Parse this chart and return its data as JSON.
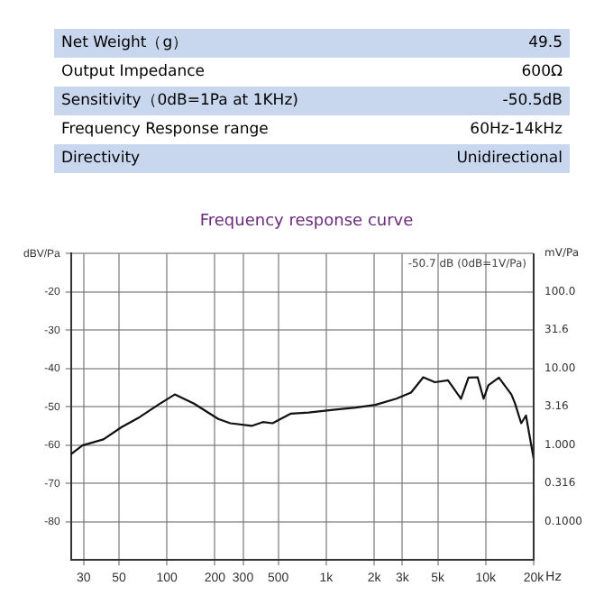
{
  "chart_data": {
    "type": "line",
    "title": "Frequency response curve",
    "annotations": [
      "-50.7 dB (0dB=1V/Pa)",
      "Net Weight（g）",
      "49.5",
      "Output Impedance",
      "600Ω",
      "Sensitivity（0dB=1Pa at 1KHz)",
      "-50.5dB",
      "Frequency Response range",
      "60Hz-14kHz",
      "Directivity",
      "Unidirectional",
      "mV/Pa",
      "100.0",
      "31.6",
      "10.00",
      "3.16",
      "1.000",
      "0.316",
      "0.1000"
    ],
    "log": "x",
    "grid": true,
    "marker": "none",
    "line_style": "solid",
    "xlim": [
      25,
      20000
    ],
    "xticks": [
      30,
      50,
      100,
      200,
      300,
      500,
      {
        "value": 1000,
        "label": "1k"
      },
      {
        "value": 2000,
        "label": "2k"
      },
      {
        "value": 3000,
        "label": "3k"
      },
      {
        "value": 5000,
        "label": "5k"
      },
      {
        "value": 10000,
        "label": "10k"
      },
      {
        "value": 20000,
        "label": "20k"
      }
    ],
    "xlabel": "Hz",
    "ylim": [
      -90,
      -10
    ],
    "yticks": [
      -80,
      -70,
      -60,
      -50,
      -40,
      -30,
      -20,
      {
        "value": -10,
        "label": "dBV/Pa"
      }
    ],
    "x": [
      25,
      29.5,
      40,
      52,
      67.5,
      88,
      112,
      148,
      210,
      250,
      340,
      400,
      460,
      600,
      775,
      1100,
      1530,
      2030,
      2750,
      3400,
      4060,
      4800,
      5800,
      7000,
      7800,
      8900,
      9700,
      10400,
      12100,
      14500,
      15300,
      16700,
      17900,
      20000
    ],
    "series": [
      {
        "color": "#111111",
        "values": [
          -62.4,
          -60.1,
          -58.5,
          -55.3,
          -52.7,
          -49.5,
          -46.8,
          -49.2,
          -53.2,
          -54.3,
          -55.0,
          -54.0,
          -54.3,
          -51.8,
          -51.5,
          -50.8,
          -50.2,
          -49.5,
          -47.9,
          -46.3,
          -42.3,
          -43.6,
          -43.1,
          -47.9,
          -42.4,
          -42.3,
          -47.9,
          -44.4,
          -42.4,
          -46.8,
          -49.2,
          -54.3,
          -52.3,
          -63.6
        ]
      }
    ]
  }
}
